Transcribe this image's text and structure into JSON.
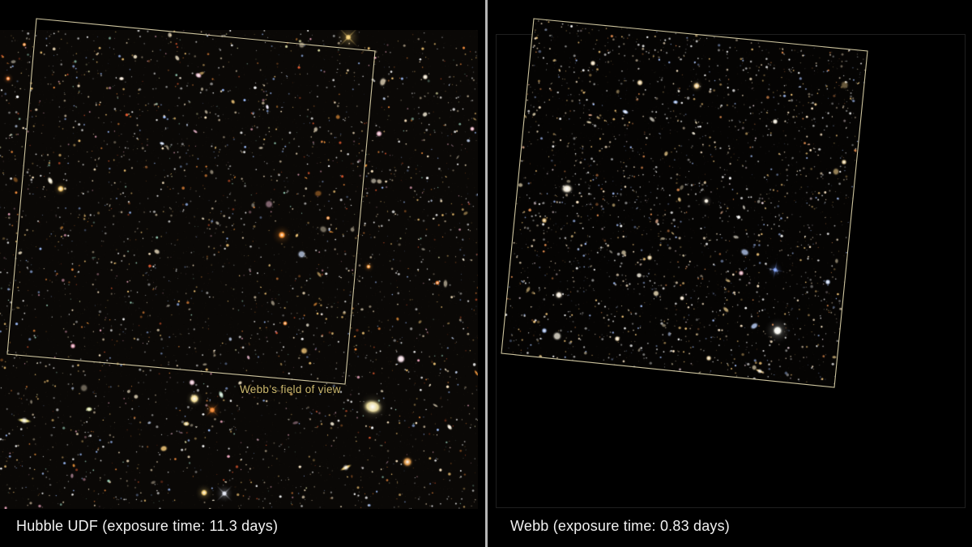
{
  "left_panel": {
    "caption": "Hubble UDF (exposure time: 11.3 days)",
    "fov_label": "Webb’s field of view"
  },
  "right_panel": {
    "caption": "Webb (exposure time: 0.83 days)"
  },
  "colors": {
    "background": "#000000",
    "divider": "#b5b5b5",
    "fov_outline": "#d9d0a8",
    "fov_label_text": "#cdb96d",
    "caption_text": "#f1f1f1",
    "image_bounds_border": "#1f1f1f"
  }
}
